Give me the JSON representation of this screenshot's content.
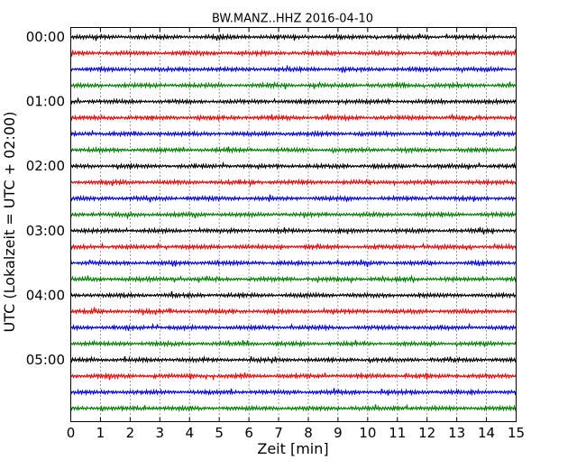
{
  "chart_data": {
    "type": "line",
    "title": "BW.MANZ..HHZ 2016-04-10",
    "xlabel": "Zeit  [min]",
    "ylabel": "UTC (Lokalzeit = UTC + 02:00)",
    "xlim": [
      0,
      15
    ],
    "x_ticks": [
      "0",
      "1",
      "2",
      "3",
      "4",
      "5",
      "6",
      "7",
      "8",
      "9",
      "10",
      "11",
      "12",
      "13",
      "14",
      "15"
    ],
    "y_ticks": [
      "00:00",
      "01:00",
      "02:00",
      "03:00",
      "04:00",
      "05:00"
    ],
    "row_minutes": 15,
    "row_count": 24,
    "colors": [
      "#000000",
      "#ff0000",
      "#0000ff",
      "#008000"
    ],
    "grid_x": "dotted vertical lines at each minute"
  }
}
